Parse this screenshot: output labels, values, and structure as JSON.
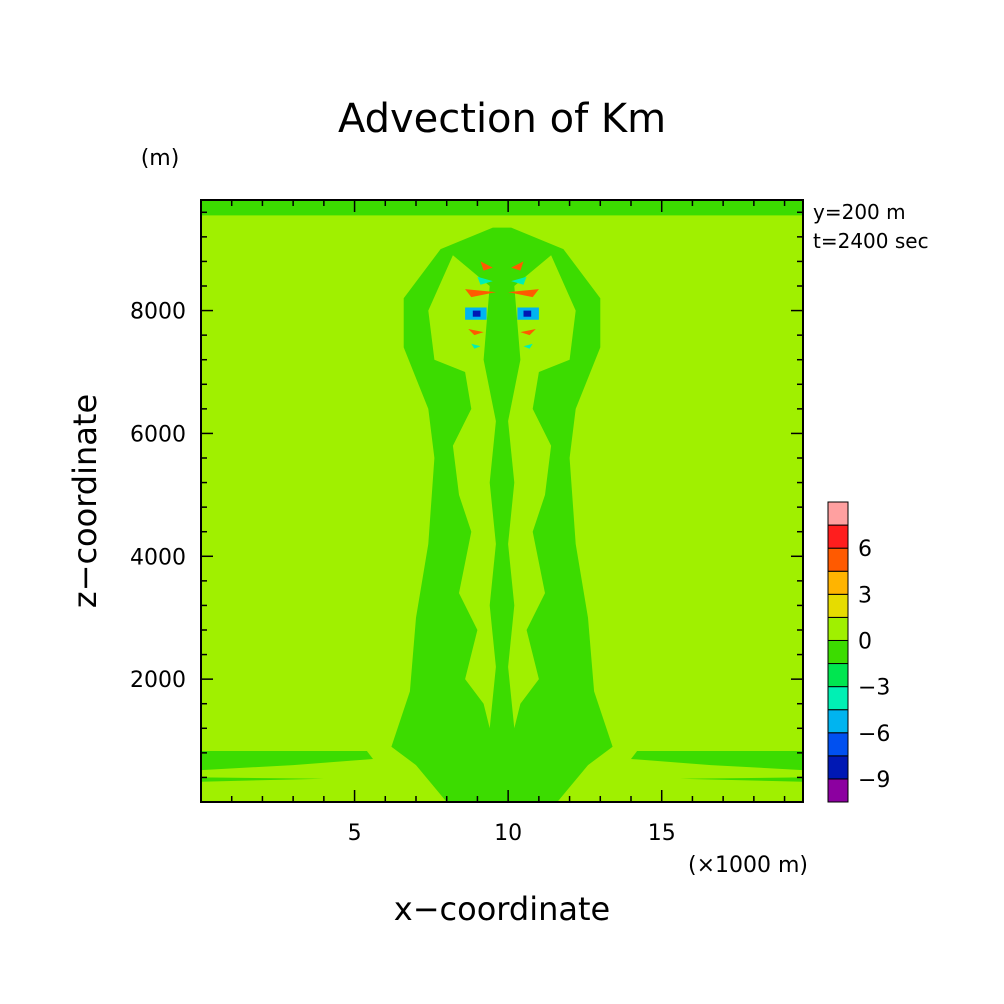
{
  "chart_data": {
    "type": "heatmap",
    "title": "Advection of Km",
    "xlabel": "x−coordinate",
    "ylabel": "z−coordinate",
    "x_unit": "(×1000 m)",
    "y_unit": "(m)",
    "xlim": [
      0,
      19.6
    ],
    "ylim": [
      0,
      9800
    ],
    "x_ticks": [
      5,
      10,
      15
    ],
    "y_ticks": [
      2000,
      4000,
      6000,
      8000
    ],
    "annotations": [
      "y=200 m",
      "t=2400 sec"
    ],
    "colorbar": {
      "levels": [
        -10.5,
        -9,
        -7.5,
        -6,
        -4.5,
        -3,
        -1.5,
        0,
        1.5,
        3,
        4.5,
        6,
        7.5
      ],
      "colors": [
        "#8c00a0",
        "#0018b4",
        "#0050f0",
        "#00b4f0",
        "#00f0b4",
        "#00e650",
        "#3cdc00",
        "#a0f000",
        "#e6dc00",
        "#ffb400",
        "#ff5a00",
        "#ff1e1e",
        "#ffa0a0"
      ],
      "tick_labels": [
        "6",
        "3",
        "0",
        "−3",
        "−6",
        "−9"
      ],
      "tick_values": [
        6,
        3,
        0,
        -3,
        -6,
        -9
      ]
    },
    "background_value": 0.5,
    "regions": [
      {
        "name": "top-band",
        "value": -0.8,
        "poly": [
          [
            0,
            9800
          ],
          [
            19.6,
            9800
          ],
          [
            19.6,
            9550
          ],
          [
            0,
            9550
          ]
        ]
      },
      {
        "name": "bottom-left-band",
        "value": -0.8,
        "poly": [
          [
            0,
            830
          ],
          [
            5.4,
            830
          ],
          [
            5.6,
            700
          ],
          [
            3,
            600
          ],
          [
            0,
            520
          ]
        ]
      },
      {
        "name": "bottom-right-band",
        "value": -0.8,
        "poly": [
          [
            19.6,
            830
          ],
          [
            14.2,
            830
          ],
          [
            14,
            700
          ],
          [
            16.6,
            600
          ],
          [
            19.6,
            520
          ]
        ]
      },
      {
        "name": "bottom-left-strip",
        "value": -0.8,
        "poly": [
          [
            0,
            400
          ],
          [
            4,
            380
          ],
          [
            0,
            330
          ]
        ]
      },
      {
        "name": "bottom-right-strip",
        "value": -0.8,
        "poly": [
          [
            19.6,
            400
          ],
          [
            15.6,
            380
          ],
          [
            19.6,
            330
          ]
        ]
      },
      {
        "name": "column-outline",
        "value": -0.8,
        "poly": [
          [
            9.5,
            9350
          ],
          [
            7.8,
            9000
          ],
          [
            6.6,
            8200
          ],
          [
            6.6,
            7400
          ],
          [
            7.4,
            6400
          ],
          [
            7.6,
            5600
          ],
          [
            7.4,
            4200
          ],
          [
            7.0,
            3000
          ],
          [
            6.8,
            1800
          ],
          [
            6.2,
            900
          ],
          [
            7.0,
            600
          ],
          [
            8.0,
            0
          ],
          [
            11.6,
            0
          ],
          [
            12.6,
            600
          ],
          [
            13.4,
            900
          ],
          [
            12.8,
            1800
          ],
          [
            12.6,
            3000
          ],
          [
            12.2,
            4200
          ],
          [
            12.0,
            5600
          ],
          [
            12.2,
            6400
          ],
          [
            13.0,
            7400
          ],
          [
            13.0,
            8200
          ],
          [
            11.8,
            9000
          ],
          [
            10.1,
            9350
          ]
        ]
      },
      {
        "name": "column-inner-left",
        "value": 0.5,
        "poly": [
          [
            8.2,
            8900
          ],
          [
            7.4,
            8000
          ],
          [
            7.6,
            7200
          ],
          [
            8.6,
            7000
          ],
          [
            8.8,
            6400
          ],
          [
            8.2,
            5800
          ],
          [
            8.4,
            5000
          ],
          [
            8.8,
            4400
          ],
          [
            8.4,
            3400
          ],
          [
            9.0,
            2800
          ],
          [
            8.6,
            2000
          ],
          [
            9.2,
            1600
          ],
          [
            9.4,
            1200
          ],
          [
            9.6,
            2200
          ],
          [
            9.4,
            3200
          ],
          [
            9.6,
            4200
          ],
          [
            9.4,
            5200
          ],
          [
            9.6,
            6200
          ],
          [
            9.2,
            7200
          ],
          [
            9.4,
            8400
          ]
        ]
      },
      {
        "name": "column-inner-right",
        "value": 0.5,
        "poly": [
          [
            11.4,
            8900
          ],
          [
            12.2,
            8000
          ],
          [
            12.0,
            7200
          ],
          [
            11.0,
            7000
          ],
          [
            10.8,
            6400
          ],
          [
            11.4,
            5800
          ],
          [
            11.2,
            5000
          ],
          [
            10.8,
            4400
          ],
          [
            11.2,
            3400
          ],
          [
            10.6,
            2800
          ],
          [
            11.0,
            2000
          ],
          [
            10.4,
            1600
          ],
          [
            10.2,
            1200
          ],
          [
            10.0,
            2200
          ],
          [
            10.2,
            3200
          ],
          [
            10.0,
            4200
          ],
          [
            10.2,
            5200
          ],
          [
            10.0,
            6200
          ],
          [
            10.4,
            7200
          ],
          [
            10.2,
            8400
          ]
        ]
      },
      {
        "name": "core-left-1",
        "value": 5.2,
        "poly": [
          [
            9.1,
            8800
          ],
          [
            9.5,
            8700
          ],
          [
            9.2,
            8650
          ]
        ]
      },
      {
        "name": "core-left-2",
        "value": -4.0,
        "poly": [
          [
            9.0,
            8550
          ],
          [
            9.5,
            8480
          ],
          [
            9.1,
            8420
          ]
        ]
      },
      {
        "name": "core-left-3",
        "value": 5.2,
        "poly": [
          [
            8.6,
            8350
          ],
          [
            9.6,
            8300
          ],
          [
            8.8,
            8220
          ]
        ]
      },
      {
        "name": "core-left-4",
        "value": -5.0,
        "poly": [
          [
            8.6,
            8050
          ],
          [
            9.3,
            8050
          ],
          [
            9.3,
            7850
          ],
          [
            8.6,
            7850
          ]
        ]
      },
      {
        "name": "core-left-5",
        "value": -9.0,
        "poly": [
          [
            8.85,
            8000
          ],
          [
            9.1,
            8000
          ],
          [
            9.1,
            7900
          ],
          [
            8.85,
            7900
          ]
        ]
      },
      {
        "name": "core-left-6",
        "value": 5.2,
        "poly": [
          [
            8.7,
            7700
          ],
          [
            9.2,
            7650
          ],
          [
            8.9,
            7600
          ]
        ]
      },
      {
        "name": "core-left-7",
        "value": -4.0,
        "poly": [
          [
            8.8,
            7460
          ],
          [
            9.1,
            7420
          ],
          [
            8.9,
            7380
          ]
        ]
      },
      {
        "name": "core-right-1",
        "value": 5.2,
        "poly": [
          [
            10.5,
            8800
          ],
          [
            10.1,
            8700
          ],
          [
            10.4,
            8650
          ]
        ]
      },
      {
        "name": "core-right-2",
        "value": -4.0,
        "poly": [
          [
            10.6,
            8550
          ],
          [
            10.1,
            8480
          ],
          [
            10.5,
            8420
          ]
        ]
      },
      {
        "name": "core-right-3",
        "value": 5.2,
        "poly": [
          [
            11.0,
            8350
          ],
          [
            10.0,
            8300
          ],
          [
            10.8,
            8220
          ]
        ]
      },
      {
        "name": "core-right-4",
        "value": -5.0,
        "poly": [
          [
            11.0,
            8050
          ],
          [
            10.3,
            8050
          ],
          [
            10.3,
            7850
          ],
          [
            11.0,
            7850
          ]
        ]
      },
      {
        "name": "core-right-5",
        "value": -9.0,
        "poly": [
          [
            10.75,
            8000
          ],
          [
            10.5,
            8000
          ],
          [
            10.5,
            7900
          ],
          [
            10.75,
            7900
          ]
        ]
      },
      {
        "name": "core-right-6",
        "value": 5.2,
        "poly": [
          [
            10.9,
            7700
          ],
          [
            10.4,
            7650
          ],
          [
            10.7,
            7600
          ]
        ]
      },
      {
        "name": "core-right-7",
        "value": -4.0,
        "poly": [
          [
            10.8,
            7460
          ],
          [
            10.5,
            7420
          ],
          [
            10.7,
            7380
          ]
        ]
      }
    ]
  }
}
